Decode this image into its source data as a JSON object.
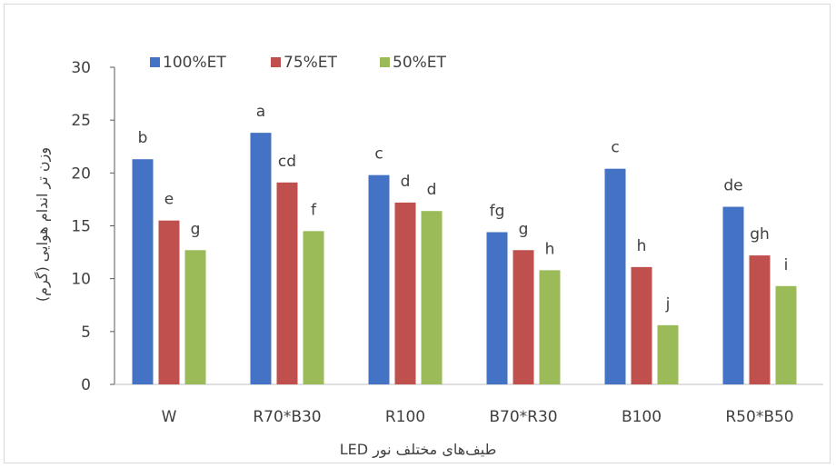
{
  "chart_data": {
    "type": "bar",
    "categories": [
      "W",
      "R70*B30",
      "R100",
      "B70*R30",
      "B100",
      "R50*B50"
    ],
    "series": [
      {
        "name": "100%ET",
        "color": "#4472C4",
        "values": [
          21.3,
          23.8,
          19.8,
          14.4,
          20.4,
          16.8
        ],
        "letters": [
          "b",
          "a",
          "c",
          "fg",
          "c",
          "de"
        ]
      },
      {
        "name": "75%ET",
        "color": "#C0504D",
        "values": [
          15.5,
          19.1,
          17.2,
          12.7,
          11.1,
          12.2
        ],
        "letters": [
          "e",
          "cd",
          "d",
          "g",
          "h",
          "gh"
        ]
      },
      {
        "name": "50%ET",
        "color": "#9BBB59",
        "values": [
          12.7,
          14.5,
          16.4,
          10.8,
          5.6,
          9.3
        ],
        "letters": [
          "g",
          "f",
          "d",
          "h",
          "j",
          "i"
        ]
      }
    ],
    "xlabel": "طیف‌های مختلف نور LED",
    "ylabel": "وزن تر اندام هوایی (گرم)",
    "ylim": [
      0,
      30
    ],
    "yticks": [
      0,
      5,
      10,
      15,
      20,
      25,
      30
    ],
    "grid": false,
    "legend_position": "top-left"
  }
}
